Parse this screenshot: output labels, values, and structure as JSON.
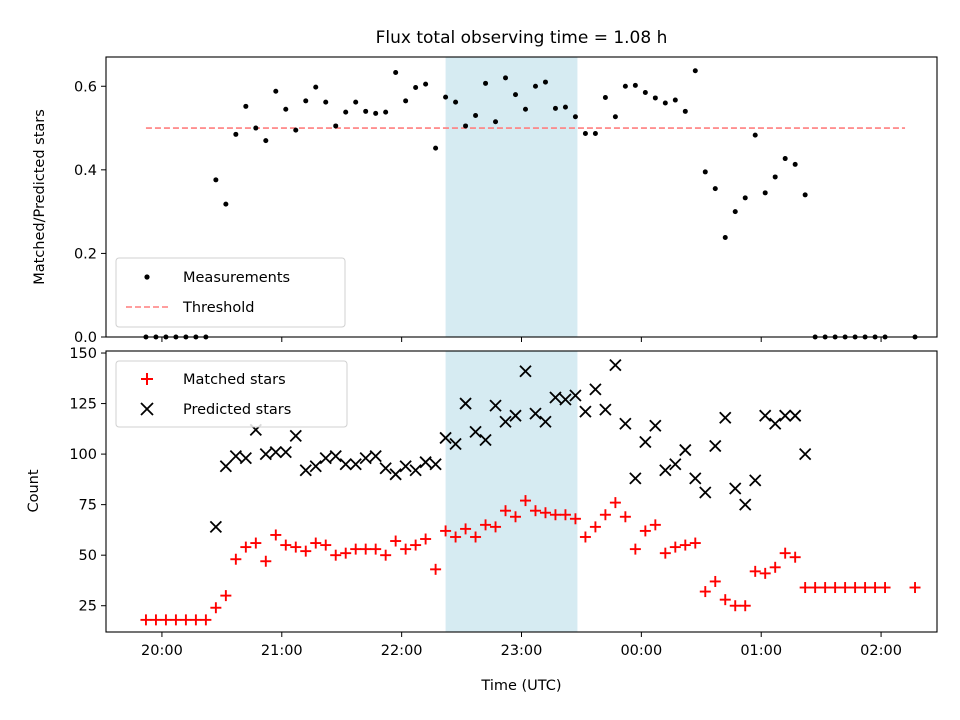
{
  "chart_data": [
    {
      "type": "scatter",
      "title": "Flux total observing time = 1.08 h",
      "xlabel": "",
      "ylabel": "Matched/Predicted stars",
      "xlim": [
        "19:32",
        "02:28"
      ],
      "ylim": [
        0,
        0.67
      ],
      "yticks": [
        0.0,
        0.2,
        0.4,
        0.6
      ],
      "ytick_labels": [
        "0.0",
        "0.2",
        "0.4",
        "0.6"
      ],
      "shaded_span": [
        "22:22",
        "23:28"
      ],
      "shaded_color": "#add8e6",
      "legend": {
        "location": "lower-left",
        "entries": [
          "Measurements",
          "Threshold"
        ]
      },
      "threshold": {
        "name": "Threshold",
        "value": 0.5,
        "x_range": [
          "19:52",
          "02:12"
        ],
        "color": "#ff7f7f",
        "style": "dashed"
      },
      "series": [
        {
          "name": "Measurements",
          "color": "#000000",
          "marker": "dot",
          "x": [
            "19:52",
            "19:57",
            "20:02",
            "20:07",
            "20:12",
            "20:17",
            "20:22",
            "20:27",
            "20:32",
            "20:37",
            "20:42",
            "20:47",
            "20:52",
            "20:57",
            "21:02",
            "21:07",
            "21:12",
            "21:17",
            "21:22",
            "21:27",
            "21:32",
            "21:37",
            "21:42",
            "21:47",
            "21:52",
            "21:57",
            "22:02",
            "22:07",
            "22:12",
            "22:17",
            "22:22",
            "22:27",
            "22:32",
            "22:37",
            "22:42",
            "22:47",
            "22:52",
            "22:57",
            "23:02",
            "23:07",
            "23:12",
            "23:17",
            "23:22",
            "23:27",
            "23:32",
            "23:37",
            "23:42",
            "23:47",
            "23:52",
            "23:57",
            "00:02",
            "00:07",
            "00:12",
            "00:17",
            "00:22",
            "00:27",
            "00:32",
            "00:37",
            "00:42",
            "00:47",
            "00:52",
            "00:57",
            "01:02",
            "01:07",
            "01:12",
            "01:17",
            "01:22",
            "01:27",
            "01:32",
            "01:37",
            "01:42",
            "01:47",
            "01:52",
            "01:57",
            "02:02",
            "02:17"
          ],
          "y": [
            0.0,
            0.0,
            0.0,
            0.0,
            0.0,
            0.0,
            0.0,
            0.376,
            0.318,
            0.485,
            0.552,
            0.5,
            0.47,
            0.588,
            0.545,
            0.495,
            0.565,
            0.598,
            0.562,
            0.505,
            0.538,
            0.562,
            0.54,
            0.535,
            0.538,
            0.633,
            0.565,
            0.597,
            0.605,
            0.452,
            0.574,
            0.562,
            0.505,
            0.53,
            0.607,
            0.515,
            0.62,
            0.58,
            0.545,
            0.6,
            0.61,
            0.547,
            0.55,
            0.527,
            0.487,
            0.487,
            0.573,
            0.527,
            0.6,
            0.602,
            0.585,
            0.572,
            0.56,
            0.567,
            0.54,
            0.637,
            0.395,
            0.355,
            0.238,
            0.3,
            0.333,
            0.483,
            0.345,
            0.383,
            0.427,
            0.413,
            0.34,
            0.0,
            0.0,
            0.0,
            0.0,
            0.0,
            0.0,
            0.0,
            0.0,
            0.0
          ]
        }
      ]
    },
    {
      "type": "scatter",
      "title": "",
      "xlabel": "Time (UTC)",
      "ylabel": "Count",
      "xlim": [
        "19:32",
        "02:28"
      ],
      "ylim": [
        12,
        151
      ],
      "yticks": [
        25,
        50,
        75,
        100,
        125,
        150
      ],
      "ytick_labels": [
        "25",
        "50",
        "75",
        "100",
        "125",
        "150"
      ],
      "xticks": [
        "20:00",
        "21:00",
        "22:00",
        "23:00",
        "00:00",
        "01:00",
        "02:00"
      ],
      "xtick_labels": [
        "20:00",
        "21:00",
        "22:00",
        "23:00",
        "00:00",
        "01:00",
        "02:00"
      ],
      "shaded_span": [
        "22:22",
        "23:28"
      ],
      "shaded_color": "#add8e6",
      "legend": {
        "location": "upper-left",
        "entries": [
          "Matched stars",
          "Predicted stars"
        ]
      },
      "series": [
        {
          "name": "Matched stars",
          "color": "#ff0000",
          "marker": "plus",
          "x": [
            "19:52",
            "19:57",
            "20:02",
            "20:07",
            "20:12",
            "20:17",
            "20:22",
            "20:27",
            "20:32",
            "20:37",
            "20:42",
            "20:47",
            "20:52",
            "20:57",
            "21:02",
            "21:07",
            "21:12",
            "21:17",
            "21:22",
            "21:27",
            "21:32",
            "21:37",
            "21:42",
            "21:47",
            "21:52",
            "21:57",
            "22:02",
            "22:07",
            "22:12",
            "22:17",
            "22:22",
            "22:27",
            "22:32",
            "22:37",
            "22:42",
            "22:47",
            "22:52",
            "22:57",
            "23:02",
            "23:07",
            "23:12",
            "23:17",
            "23:22",
            "23:27",
            "23:32",
            "23:37",
            "23:42",
            "23:47",
            "23:52",
            "23:57",
            "00:02",
            "00:07",
            "00:12",
            "00:17",
            "00:22",
            "00:27",
            "00:32",
            "00:37",
            "00:42",
            "00:47",
            "00:52",
            "00:57",
            "01:02",
            "01:07",
            "01:12",
            "01:17",
            "01:22",
            "01:27",
            "01:32",
            "01:37",
            "01:42",
            "01:47",
            "01:52",
            "01:57",
            "02:02",
            "02:17"
          ],
          "y": [
            18,
            18,
            18,
            18,
            18,
            18,
            18,
            24,
            30,
            48,
            54,
            56,
            47,
            60,
            55,
            54,
            52,
            56,
            55,
            50,
            51,
            53,
            53,
            53,
            50,
            57,
            53,
            55,
            58,
            43,
            62,
            59,
            63,
            59,
            65,
            64,
            72,
            69,
            77,
            72,
            71,
            70,
            70,
            68,
            59,
            64,
            70,
            76,
            69,
            53,
            62,
            65,
            51,
            54,
            55,
            56,
            32,
            37,
            28,
            25,
            25,
            42,
            41,
            44,
            51,
            49,
            34,
            34,
            34,
            34,
            34,
            34,
            34,
            34,
            34,
            34
          ]
        },
        {
          "name": "Predicted stars",
          "color": "#000000",
          "marker": "x",
          "x": [
            "20:27",
            "20:32",
            "20:37",
            "20:42",
            "20:47",
            "20:52",
            "20:57",
            "21:02",
            "21:07",
            "21:12",
            "21:17",
            "21:22",
            "21:27",
            "21:32",
            "21:37",
            "21:42",
            "21:47",
            "21:52",
            "21:57",
            "22:02",
            "22:07",
            "22:12",
            "22:17",
            "22:22",
            "22:27",
            "22:32",
            "22:37",
            "22:42",
            "22:47",
            "22:52",
            "22:57",
            "23:02",
            "23:07",
            "23:12",
            "23:17",
            "23:22",
            "23:27",
            "23:32",
            "23:37",
            "23:42",
            "23:47",
            "23:52",
            "23:57",
            "00:02",
            "00:07",
            "00:12",
            "00:17",
            "00:22",
            "00:27",
            "00:32",
            "00:37",
            "00:42",
            "00:47",
            "00:52",
            "00:57",
            "01:02",
            "01:07",
            "01:12",
            "01:17",
            "01:22"
          ],
          "y": [
            64,
            94,
            99,
            98,
            112,
            100,
            101,
            101,
            109,
            92,
            94,
            98,
            99,
            95,
            95,
            98,
            99,
            93,
            90,
            94,
            92,
            96,
            95,
            108,
            105,
            125,
            111,
            107,
            124,
            116,
            119,
            141,
            120,
            116,
            128,
            127,
            129,
            121,
            132,
            122,
            144,
            115,
            88,
            106,
            114,
            92,
            95,
            102,
            88,
            81,
            104,
            118,
            83,
            75,
            87,
            119,
            115,
            119,
            119,
            100
          ]
        }
      ]
    }
  ]
}
